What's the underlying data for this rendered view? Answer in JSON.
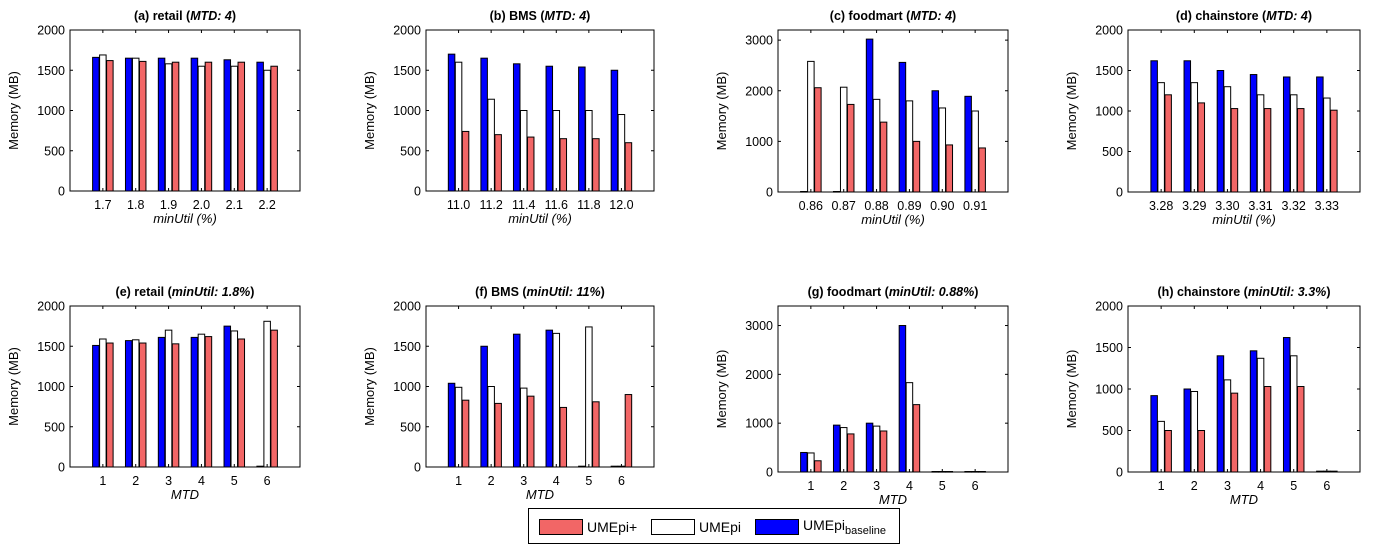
{
  "colors": {
    "UMEpi+": "#f26666",
    "UMEpi": "#ffffff",
    "UMEpi_baseline": "#0000ff"
  },
  "legend": {
    "items": [
      {
        "key": "UMEpi+",
        "label": "UMEpi+",
        "sub": ""
      },
      {
        "key": "UMEpi",
        "label": "UMEpi",
        "sub": ""
      },
      {
        "key": "UMEpi_baseline",
        "label": "UMEpi",
        "sub": "baseline"
      }
    ]
  },
  "chart_data": [
    {
      "type": "bar",
      "title_main": "(a) retail (",
      "title_italic": "MTD: 4",
      "title_end": ")",
      "ylabel": "Memory  (MB)",
      "xlabel": "minUtil (%)",
      "xlabel_italic": true,
      "ylim": [
        0,
        2000
      ],
      "yticks": [
        0,
        500,
        1000,
        1500,
        2000
      ],
      "categories": [
        "1.7",
        "1.8",
        "1.9",
        "2.0",
        "2.1",
        "2.2"
      ],
      "series": [
        {
          "name": "UMEpi_baseline",
          "values": [
            1660,
            1650,
            1650,
            1650,
            1630,
            1600
          ]
        },
        {
          "name": "UMEpi",
          "values": [
            1690,
            1650,
            1580,
            1550,
            1550,
            1500
          ]
        },
        {
          "name": "UMEpi+",
          "values": [
            1620,
            1610,
            1600,
            1600,
            1600,
            1550
          ]
        }
      ]
    },
    {
      "type": "bar",
      "title_main": "(b) BMS (",
      "title_italic": "MTD: 4",
      "title_end": ")",
      "ylabel": "Memory  (MB)",
      "xlabel": "minUtil (%)",
      "xlabel_italic": true,
      "ylim": [
        0,
        2000
      ],
      "yticks": [
        0,
        500,
        1000,
        1500,
        2000
      ],
      "categories": [
        "11.0",
        "11.2",
        "11.4",
        "11.6",
        "11.8",
        "12.0"
      ],
      "series": [
        {
          "name": "UMEpi_baseline",
          "values": [
            1700,
            1650,
            1580,
            1550,
            1540,
            1500
          ]
        },
        {
          "name": "UMEpi",
          "values": [
            1600,
            1140,
            1000,
            1000,
            1000,
            950
          ]
        },
        {
          "name": "UMEpi+",
          "values": [
            740,
            700,
            670,
            650,
            650,
            600
          ]
        }
      ]
    },
    {
      "type": "bar",
      "title_main": "(c) foodmart (",
      "title_italic": "MTD: 4",
      "title_end": ")",
      "ylabel": "Memory  (MB)",
      "xlabel": "minUtil (%)",
      "xlabel_italic": true,
      "ylim": [
        0,
        3200
      ],
      "yticks": [
        0,
        1000,
        2000,
        3000
      ],
      "categories": [
        "0.86",
        "0.87",
        "0.88",
        "0.89",
        "0.90",
        "0.91"
      ],
      "series": [
        {
          "name": "UMEpi_baseline",
          "values": [
            10,
            10,
            3020,
            2560,
            2000,
            1890
          ]
        },
        {
          "name": "UMEpi",
          "values": [
            2580,
            2070,
            1830,
            1800,
            1660,
            1600
          ]
        },
        {
          "name": "UMEpi+",
          "values": [
            2060,
            1730,
            1380,
            1000,
            930,
            870
          ]
        }
      ]
    },
    {
      "type": "bar",
      "title_main": "(d) chainstore (",
      "title_italic": "MTD: 4",
      "title_end": ")",
      "ylabel": "Memory  (MB)",
      "xlabel": "minUtil (%)",
      "xlabel_italic": true,
      "ylim": [
        0,
        2000
      ],
      "yticks": [
        0,
        500,
        1000,
        1500,
        2000
      ],
      "categories": [
        "3.28",
        "3.29",
        "3.30",
        "3.31",
        "3.32",
        "3.33"
      ],
      "series": [
        {
          "name": "UMEpi_baseline",
          "values": [
            1620,
            1620,
            1500,
            1450,
            1420,
            1420
          ]
        },
        {
          "name": "UMEpi",
          "values": [
            1350,
            1350,
            1300,
            1200,
            1200,
            1160
          ]
        },
        {
          "name": "UMEpi+",
          "values": [
            1200,
            1100,
            1030,
            1030,
            1030,
            1010
          ]
        }
      ]
    },
    {
      "type": "bar",
      "title_main": "(e) retail (",
      "title_italic": "minUtil: 1.8%",
      "title_end": ")",
      "ylabel": "Memory  (MB)",
      "xlabel": "MTD",
      "xlabel_italic": true,
      "ylim": [
        0,
        2000
      ],
      "yticks": [
        0,
        500,
        1000,
        1500,
        2000
      ],
      "categories": [
        "1",
        "2",
        "3",
        "4",
        "5",
        "6"
      ],
      "series": [
        {
          "name": "UMEpi_baseline",
          "values": [
            1510,
            1570,
            1610,
            1610,
            1750,
            10
          ]
        },
        {
          "name": "UMEpi",
          "values": [
            1590,
            1580,
            1700,
            1650,
            1690,
            1810
          ]
        },
        {
          "name": "UMEpi+",
          "values": [
            1540,
            1540,
            1530,
            1620,
            1590,
            1700
          ]
        }
      ]
    },
    {
      "type": "bar",
      "title_main": "(f) BMS (",
      "title_italic": "minUtil: 11%",
      "title_end": ")",
      "ylabel": "Memory  (MB)",
      "xlabel": "MTD",
      "xlabel_italic": true,
      "ylim": [
        0,
        2000
      ],
      "yticks": [
        0,
        500,
        1000,
        1500,
        2000
      ],
      "categories": [
        "1",
        "2",
        "3",
        "4",
        "5",
        "6"
      ],
      "series": [
        {
          "name": "UMEpi_baseline",
          "values": [
            1040,
            1500,
            1650,
            1700,
            10,
            10
          ]
        },
        {
          "name": "UMEpi",
          "values": [
            990,
            1000,
            980,
            1660,
            1740,
            10
          ]
        },
        {
          "name": "UMEpi+",
          "values": [
            830,
            790,
            880,
            740,
            810,
            900
          ]
        }
      ]
    },
    {
      "type": "bar",
      "title_main": "(g) foodmart (",
      "title_italic": "minUtil: 0.88%",
      "title_end": ")",
      "ylabel": "Memory  (MB)",
      "xlabel": "MTD",
      "xlabel_italic": true,
      "ylim": [
        0,
        3400
      ],
      "yticks": [
        0,
        1000,
        2000,
        3000
      ],
      "categories": [
        "1",
        "2",
        "3",
        "4",
        "5",
        "6"
      ],
      "series": [
        {
          "name": "UMEpi_baseline",
          "values": [
            400,
            960,
            1000,
            3000,
            10,
            10
          ]
        },
        {
          "name": "UMEpi",
          "values": [
            390,
            910,
            940,
            1830,
            10,
            10
          ]
        },
        {
          "name": "UMEpi+",
          "values": [
            230,
            780,
            840,
            1380,
            10,
            10
          ]
        }
      ]
    },
    {
      "type": "bar",
      "title_main": "(h) chainstore (",
      "title_italic": "minUtil: 3.3%",
      "title_end": ")",
      "ylabel": "Memory  (MB)",
      "xlabel": "MTD",
      "xlabel_italic": true,
      "ylim": [
        0,
        2000
      ],
      "yticks": [
        0,
        500,
        1000,
        1500,
        2000
      ],
      "categories": [
        "1",
        "2",
        "3",
        "4",
        "5",
        "6"
      ],
      "series": [
        {
          "name": "UMEpi_baseline",
          "values": [
            920,
            1000,
            1400,
            1460,
            1620,
            10
          ]
        },
        {
          "name": "UMEpi",
          "values": [
            610,
            970,
            1110,
            1370,
            1400,
            10
          ]
        },
        {
          "name": "UMEpi+",
          "values": [
            500,
            500,
            950,
            1030,
            1030,
            10
          ]
        }
      ]
    }
  ]
}
